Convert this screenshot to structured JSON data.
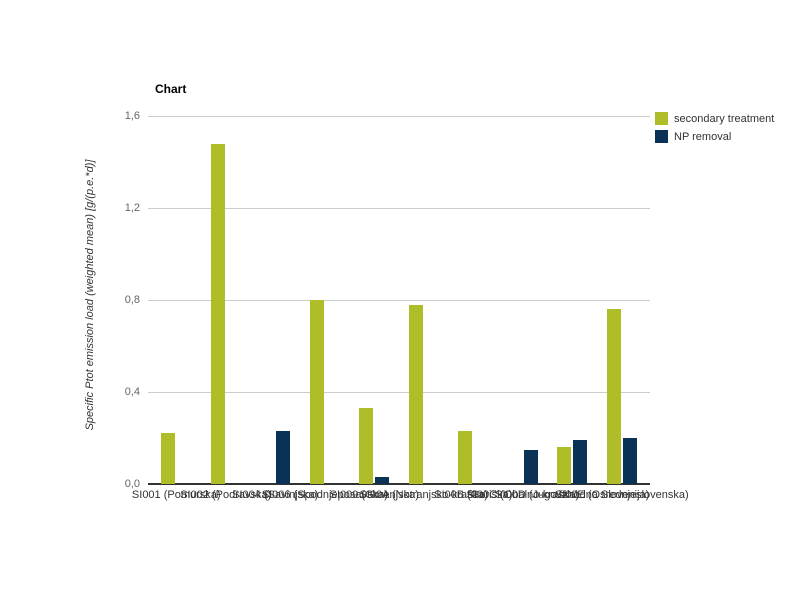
{
  "title": "Chart",
  "chart_data": {
    "type": "bar",
    "title": "Chart",
    "xlabel": "",
    "ylabel": "Specific Ptot emission load (weighted mean) [g/(p.e.*d)]",
    "ylim": [
      0,
      1.6
    ],
    "yticks": [
      0,
      0.4,
      0.8,
      1.2,
      1.6
    ],
    "ytick_labels": [
      "0,0",
      "0,4",
      "0,8",
      "1,2",
      "1,6"
    ],
    "grid": true,
    "legend_position": "top-right",
    "categories": [
      "SI001 (Pomurska)",
      "SI002 (Podravska)",
      "SI004 (Savinjska)",
      "SI006 (Spodnjeposavska)",
      "SI009 (Gorenjska)",
      "SI00A (Notranjsko-kraška)",
      "SI00B (Goriška)",
      "SI00C (Obalno-kraška)",
      "SI00D (Jugovzhodna Slovenija)",
      "SI00E (Osrednjeslovenska)"
    ],
    "series": [
      {
        "name": "secondary treatment",
        "color": "#AFBE28",
        "values": [
          0.22,
          1.48,
          0,
          0.8,
          0.33,
          0.78,
          0.23,
          0,
          0.16,
          0.76
        ]
      },
      {
        "name": "NP removal",
        "color": "#0A3256",
        "values": [
          0,
          0,
          0.23,
          0,
          0.03,
          0,
          0,
          0.15,
          0.19,
          0.2
        ]
      }
    ],
    "colors": {
      "gridline": "#cccccc",
      "axis_line": "#333333",
      "tick_label": "#666666",
      "x_label": "#333333",
      "title": "#000000"
    }
  }
}
